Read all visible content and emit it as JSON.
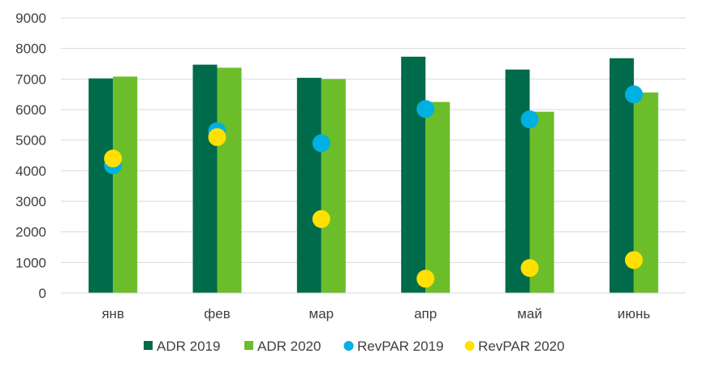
{
  "chart_data": {
    "type": "bar",
    "title": "",
    "xlabel": "",
    "ylabel": "",
    "ylim": [
      0,
      9000
    ],
    "yticks": [
      0,
      1000,
      2000,
      3000,
      4000,
      5000,
      6000,
      7000,
      8000,
      9000
    ],
    "grid": true,
    "legend_position": "bottom",
    "categories": [
      "янв",
      "фев",
      "мар",
      "апр",
      "май",
      "июнь"
    ],
    "series": [
      {
        "name": "ADR 2019",
        "kind": "bar",
        "color": "#006B4A",
        "values": [
          7020,
          7470,
          7040,
          7730,
          7310,
          7680
        ]
      },
      {
        "name": "ADR 2020",
        "kind": "bar",
        "color": "#6BBE2A",
        "values": [
          7080,
          7370,
          7000,
          6250,
          5930,
          6560
        ]
      },
      {
        "name": "RevPAR 2019",
        "kind": "scatter",
        "color": "#00B0E0",
        "values": [
          4180,
          5300,
          4900,
          6020,
          5680,
          6500
        ]
      },
      {
        "name": "RevPAR 2020",
        "kind": "scatter",
        "color": "#FFE000",
        "values": [
          4400,
          5100,
          2420,
          470,
          820,
          1080
        ]
      }
    ]
  }
}
